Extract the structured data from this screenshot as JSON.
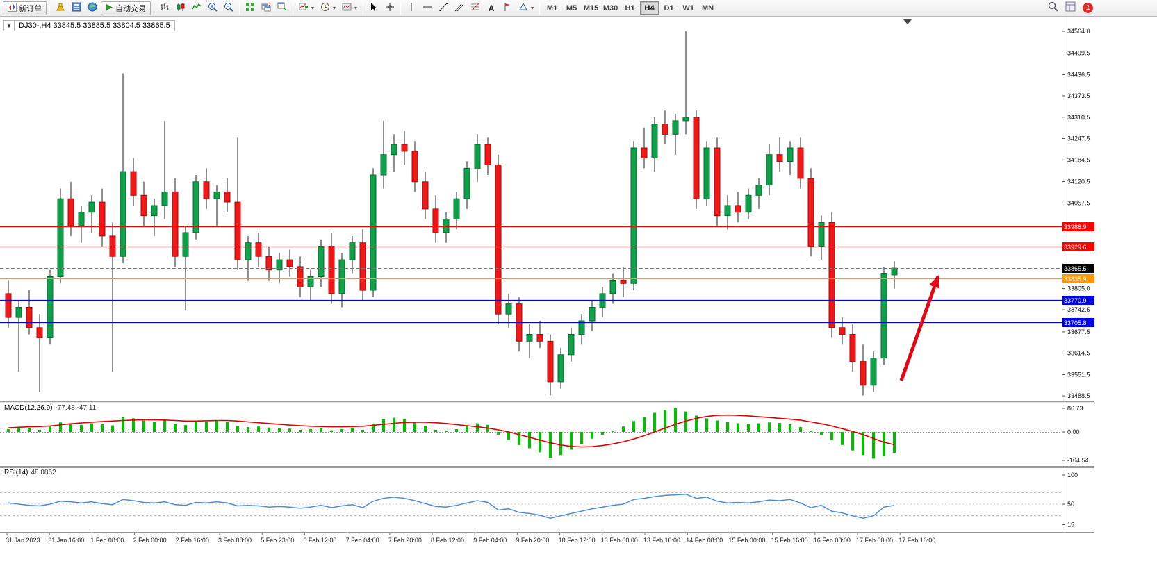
{
  "toolbar": {
    "new_order": "新订单",
    "auto_trading": "自动交易",
    "timeframes": [
      "M1",
      "M5",
      "M15",
      "M30",
      "H1",
      "H4",
      "D1",
      "W1",
      "MN"
    ],
    "active_timeframe": "H4",
    "notification_count": "1"
  },
  "icons": {
    "collapse": "▼",
    "caret": "▾",
    "text_tool": "A"
  },
  "chart": {
    "title": "DJ30-,H4 33845.5 33885.5 33804.5 33865.5",
    "price_axis_labels": [
      "34564.0",
      "34499.5",
      "34436.5",
      "34373.5",
      "34310.5",
      "34247.5",
      "34184.5",
      "34120.5",
      "34057.5",
      "33805.0",
      "33742.5",
      "33677.5",
      "33614.5",
      "33551.5",
      "33488.5"
    ],
    "level_lines": [
      {
        "label": "33988.9",
        "color": "#FF0000",
        "style": "solid"
      },
      {
        "label": "33929.6",
        "color": "#FF0000",
        "style": "solid"
      },
      {
        "label": "33865.5",
        "color": "#000000",
        "style": "bid"
      },
      {
        "label": "33835.9",
        "color": "#FF9900",
        "style": "solid"
      },
      {
        "label": "33770.9",
        "color": "#0000E8",
        "style": "solid"
      },
      {
        "label": "33705.8",
        "color": "#0000E8",
        "style": "solid"
      }
    ],
    "time_axis": [
      "31 Jan 2023",
      "31 Jan 16:00",
      "1 Feb 08:00",
      "2 Feb 00:00",
      "2 Feb 16:00",
      "3 Feb 08:00",
      "5 Feb 23:00",
      "6 Feb 12:00",
      "7 Feb 04:00",
      "7 Feb 20:00",
      "8 Feb 12:00",
      "9 Feb 04:00",
      "9 Feb 20:00",
      "10 Feb 12:00",
      "13 Feb 00:00",
      "13 Feb 16:00",
      "14 Feb 08:00",
      "15 Feb 00:00",
      "15 Feb 16:00",
      "16 Feb 08:00",
      "17 Feb 00:00",
      "17 Feb 16:00"
    ]
  },
  "chart_data": {
    "type": "candlestick",
    "symbol": "DJ30-",
    "period": "H4",
    "current_ohlc": {
      "open": 33845.5,
      "high": 33885.5,
      "low": 33804.5,
      "close": 33865.5
    },
    "price_range": [
      33488.5,
      34564.0
    ],
    "candles": [
      [
        33790,
        33830,
        33690,
        33720
      ],
      [
        33720,
        33770,
        33560,
        33750
      ],
      [
        33750,
        33800,
        33670,
        33690
      ],
      [
        33690,
        33730,
        33500,
        33660
      ],
      [
        33660,
        33860,
        33640,
        33840
      ],
      [
        33840,
        34100,
        33820,
        34070
      ],
      [
        34070,
        34120,
        33960,
        33990
      ],
      [
        33990,
        34050,
        33940,
        34030
      ],
      [
        34030,
        34080,
        33970,
        34060
      ],
      [
        34060,
        34100,
        33930,
        33960
      ],
      [
        33960,
        34000,
        33560,
        33900
      ],
      [
        33900,
        34440,
        33880,
        34150
      ],
      [
        34150,
        34190,
        34050,
        34080
      ],
      [
        34080,
        34120,
        33990,
        34020
      ],
      [
        34020,
        34070,
        33960,
        34050
      ],
      [
        34050,
        34300,
        34010,
        34090
      ],
      [
        34090,
        34130,
        33870,
        33900
      ],
      [
        33900,
        33990,
        33740,
        33970
      ],
      [
        33970,
        34140,
        33950,
        34120
      ],
      [
        34120,
        34160,
        34040,
        34070
      ],
      [
        34070,
        34110,
        33990,
        34090
      ],
      [
        34090,
        34130,
        34030,
        34060
      ],
      [
        34060,
        34250,
        33860,
        33890
      ],
      [
        33890,
        33960,
        33830,
        33940
      ],
      [
        33940,
        33970,
        33870,
        33900
      ],
      [
        33900,
        33930,
        33830,
        33860
      ],
      [
        33860,
        33910,
        33820,
        33890
      ],
      [
        33890,
        33920,
        33840,
        33870
      ],
      [
        33870,
        33900,
        33780,
        33810
      ],
      [
        33810,
        33860,
        33770,
        33840
      ],
      [
        33840,
        33950,
        33810,
        33930
      ],
      [
        33930,
        33970,
        33760,
        33790
      ],
      [
        33790,
        33910,
        33750,
        33890
      ],
      [
        33890,
        33960,
        33850,
        33940
      ],
      [
        33940,
        33980,
        33770,
        33800
      ],
      [
        33800,
        34160,
        33780,
        34140
      ],
      [
        34140,
        34300,
        34100,
        34200
      ],
      [
        34200,
        34260,
        34150,
        34230
      ],
      [
        34230,
        34270,
        34170,
        34210
      ],
      [
        34210,
        34240,
        34090,
        34120
      ],
      [
        34120,
        34150,
        34010,
        34040
      ],
      [
        34040,
        34080,
        33940,
        33970
      ],
      [
        33970,
        34030,
        33940,
        34010
      ],
      [
        34010,
        34090,
        33980,
        34070
      ],
      [
        34070,
        34180,
        34040,
        34160
      ],
      [
        34160,
        34260,
        34120,
        34230
      ],
      [
        34230,
        34250,
        34140,
        34170
      ],
      [
        34170,
        34200,
        33700,
        33730
      ],
      [
        33730,
        33790,
        33690,
        33760
      ],
      [
        33760,
        33780,
        33620,
        33650
      ],
      [
        33650,
        33700,
        33600,
        33670
      ],
      [
        33670,
        33710,
        33630,
        33650
      ],
      [
        33650,
        33670,
        33490,
        33530
      ],
      [
        33530,
        33630,
        33510,
        33610
      ],
      [
        33610,
        33690,
        33590,
        33670
      ],
      [
        33670,
        33730,
        33640,
        33710
      ],
      [
        33710,
        33770,
        33680,
        33750
      ],
      [
        33750,
        33810,
        33720,
        33790
      ],
      [
        33790,
        33850,
        33760,
        33830
      ],
      [
        33830,
        33870,
        33780,
        33820
      ],
      [
        33820,
        34240,
        33800,
        34220
      ],
      [
        34220,
        34280,
        34160,
        34190
      ],
      [
        34190,
        34310,
        34150,
        34290
      ],
      [
        34290,
        34330,
        34230,
        34260
      ],
      [
        34260,
        34320,
        34200,
        34300
      ],
      [
        34300,
        34564,
        34260,
        34310
      ],
      [
        34310,
        34330,
        34040,
        34070
      ],
      [
        34070,
        34240,
        34050,
        34220
      ],
      [
        34220,
        34250,
        33990,
        34020
      ],
      [
        34020,
        34080,
        33980,
        34050
      ],
      [
        34050,
        34090,
        34000,
        34030
      ],
      [
        34030,
        34100,
        34010,
        34080
      ],
      [
        34080,
        34130,
        34040,
        34110
      ],
      [
        34110,
        34230,
        34080,
        34200
      ],
      [
        34200,
        34250,
        34150,
        34180
      ],
      [
        34180,
        34240,
        34140,
        34220
      ],
      [
        34220,
        34250,
        34100,
        34130
      ],
      [
        34130,
        34160,
        33900,
        33930
      ],
      [
        33930,
        34020,
        33890,
        34000
      ],
      [
        34000,
        34030,
        33660,
        33690
      ],
      [
        33690,
        33720,
        33640,
        33670
      ],
      [
        33670,
        33700,
        33560,
        33590
      ],
      [
        33590,
        33640,
        33490,
        33520
      ],
      [
        33520,
        33620,
        33500,
        33600
      ],
      [
        33600,
        33870,
        33580,
        33850
      ],
      [
        33845.5,
        33885.5,
        33804.5,
        33865.5
      ]
    ],
    "indicators": [
      {
        "name": "MACD",
        "label": "MACD(12,26,9)",
        "values": "-77.48 -47.11",
        "axis_labels": [
          "86.73",
          "0.00",
          "-104.54"
        ],
        "histogram": [
          10,
          18,
          14,
          8,
          20,
          35,
          30,
          26,
          32,
          28,
          24,
          55,
          50,
          42,
          38,
          45,
          30,
          25,
          40,
          38,
          42,
          36,
          22,
          18,
          20,
          16,
          14,
          12,
          8,
          10,
          14,
          6,
          10,
          16,
          8,
          30,
          48,
          52,
          46,
          36,
          22,
          8,
          4,
          10,
          22,
          32,
          26,
          -10,
          -30,
          -48,
          -60,
          -75,
          -95,
          -85,
          -65,
          -45,
          -25,
          -10,
          5,
          20,
          40,
          55,
          70,
          80,
          87,
          75,
          60,
          50,
          42,
          36,
          32,
          30,
          32,
          35,
          33,
          28,
          18,
          5,
          -10,
          -28,
          -48,
          -68,
          -85,
          -98,
          -88,
          -77
        ],
        "signal": [
          15,
          17,
          19,
          20,
          22,
          26,
          30,
          33,
          36,
          38,
          40,
          42,
          44,
          45,
          45,
          44,
          42,
          40,
          40,
          41,
          42,
          42,
          40,
          37,
          34,
          31,
          28,
          25,
          23,
          21,
          20,
          19,
          19,
          20,
          21,
          24,
          28,
          32,
          35,
          36,
          36,
          34,
          31,
          27,
          23,
          19,
          14,
          8,
          0,
          -10,
          -20,
          -30,
          -40,
          -48,
          -53,
          -55,
          -54,
          -50,
          -44,
          -36,
          -26,
          -14,
          0,
          14,
          28,
          40,
          50,
          57,
          61,
          62,
          61,
          59,
          56,
          53,
          50,
          47,
          43,
          37,
          30,
          22,
          12,
          2,
          -10,
          -24,
          -38,
          -47
        ]
      },
      {
        "name": "RSI",
        "label": "RSI(14)",
        "value": "48.0862",
        "axis_labels": [
          "100",
          "50",
          "15"
        ],
        "levels": [
          70,
          30
        ],
        "series": [
          52,
          50,
          48,
          47,
          50,
          55,
          54,
          52,
          54,
          51,
          49,
          58,
          56,
          53,
          52,
          54,
          49,
          48,
          53,
          52,
          54,
          52,
          47,
          48,
          47,
          45,
          46,
          45,
          43,
          45,
          48,
          44,
          47,
          49,
          44,
          55,
          60,
          62,
          60,
          56,
          51,
          46,
          45,
          48,
          52,
          56,
          53,
          40,
          42,
          36,
          34,
          31,
          26,
          30,
          34,
          38,
          42,
          45,
          48,
          50,
          58,
          60,
          63,
          65,
          66,
          67,
          60,
          62,
          55,
          52,
          53,
          52,
          54,
          57,
          56,
          58,
          52,
          44,
          48,
          38,
          35,
          30,
          26,
          30,
          45,
          48
        ]
      }
    ],
    "annotation": {
      "type": "arrow",
      "color": "#E30613"
    }
  },
  "colors": {
    "bull": "#0FA04A",
    "bull_border": "#0A6E33",
    "bear": "#F21818",
    "bear_border": "#A31010",
    "wick": "#222222",
    "macd_hist": "#00C000",
    "macd_signal": "#E00000",
    "rsi_line": "#4C8FD6",
    "arrow": "#E30613"
  }
}
